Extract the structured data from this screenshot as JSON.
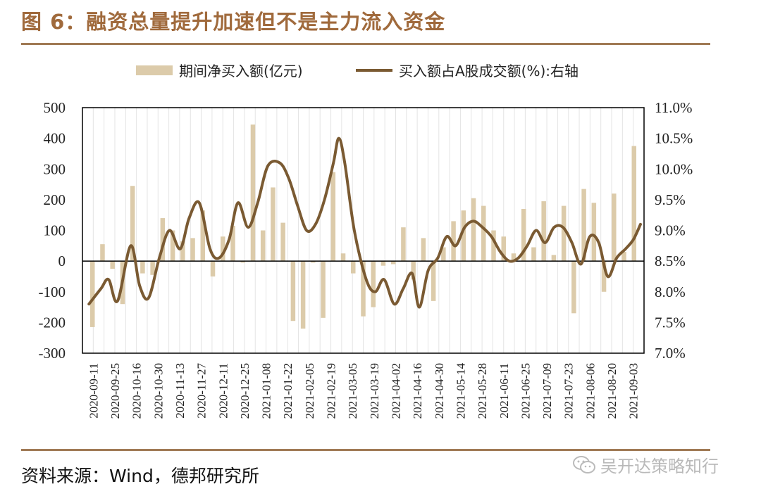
{
  "title": "图 6：融资总量提升加速但不是主力流入资金",
  "source": "资料来源：Wind，德邦研究所",
  "watermark": "吴开达策略知行",
  "colors": {
    "bar": "#dccbaa",
    "line": "#7a5a32",
    "accent": "#a06a3c"
  },
  "chart_data": {
    "type": "bar+line",
    "legend": [
      "期间净买入额(亿元)",
      "买入额占A股成交额(%):右轴"
    ],
    "legend_position": "top",
    "x_labels": [
      "2020-09-11",
      "2020-09-25",
      "2020-10-16",
      "2020-10-30",
      "2020-11-13",
      "2020-11-27",
      "2020-12-11",
      "2020-12-25",
      "2021-01-08",
      "2021-01-22",
      "2021-02-05",
      "2021-02-19",
      "2021-03-05",
      "2021-03-19",
      "2021-04-02",
      "2021-04-16",
      "2021-04-30",
      "2021-05-14",
      "2021-05-28",
      "2021-06-11",
      "2021-06-25",
      "2021-07-09",
      "2021-07-23",
      "2021-08-06",
      "2021-08-20",
      "2021-09-03"
    ],
    "left_axis": {
      "min": -300,
      "max": 500,
      "ticks": [
        "500",
        "400",
        "300",
        "200",
        "100",
        "0",
        "-100",
        "-200",
        "-300"
      ]
    },
    "right_axis": {
      "min": 7.0,
      "max": 11.0,
      "ticks": [
        "11.0%",
        "10.5%",
        "10.0%",
        "9.5%",
        "9.0%",
        "8.5%",
        "8.0%",
        "7.5%",
        "7.0%"
      ]
    },
    "series": [
      {
        "name": "期间净买入额(亿元)",
        "type": "bar",
        "values": [
          -215,
          55,
          -25,
          -140,
          245,
          -40,
          -45,
          140,
          100,
          65,
          75,
          165,
          -50,
          80,
          115,
          -5,
          445,
          100,
          240,
          125,
          -195,
          -220,
          -5,
          -185,
          290,
          25,
          -40,
          -180,
          -150,
          -15,
          -10,
          110,
          -60,
          75,
          -130,
          45,
          130,
          165,
          205,
          180,
          100,
          80,
          25,
          170,
          45,
          195,
          20,
          180,
          -170,
          235,
          190,
          -100,
          220,
          30,
          375
        ],
        "bar_positions": [
          0.5,
          1.5,
          2.5,
          3.5,
          4.5,
          5.5,
          6.5,
          7.5,
          8.5,
          9.5,
          10.5,
          11.5,
          12.5,
          13.5,
          14.5,
          15.5,
          16.5,
          17.5,
          18.5,
          19.5,
          20.5,
          21.5,
          22.5,
          23.5,
          24.5,
          25.5,
          26.5,
          27.5,
          28.5,
          29.5,
          30.5,
          31.5,
          32.5,
          33.5,
          34.5,
          35.5,
          36.5,
          37.5,
          38.5,
          39.5,
          40.5,
          41.5,
          42.5,
          43.5,
          44.5,
          45.5,
          46.5,
          47.5,
          48.5,
          49.5,
          50.5,
          51.5,
          52.5,
          53.5,
          54.5
        ]
      },
      {
        "name": "买入额占A股成交额(%):右轴",
        "type": "line",
        "axis": "right",
        "points": [
          [
            0.5,
            7.8
          ],
          [
            2.5,
            8.05
          ],
          [
            3.8,
            8.2
          ],
          [
            5.3,
            7.85
          ],
          [
            7.5,
            8.75
          ],
          [
            9.0,
            8.1
          ],
          [
            10.5,
            7.9
          ],
          [
            12.3,
            8.55
          ],
          [
            14.0,
            9.0
          ],
          [
            15.8,
            8.7
          ],
          [
            17.3,
            9.2
          ],
          [
            19.0,
            9.45
          ],
          [
            20.8,
            8.7
          ],
          [
            22.3,
            8.55
          ],
          [
            24.0,
            8.85
          ],
          [
            25.5,
            9.45
          ],
          [
            27.2,
            9.05
          ],
          [
            28.8,
            9.45
          ],
          [
            30.5,
            10.05
          ],
          [
            32.5,
            10.1
          ],
          [
            34.0,
            9.85
          ],
          [
            35.5,
            9.4
          ],
          [
            37.0,
            9.0
          ],
          [
            38.5,
            9.1
          ],
          [
            40.0,
            9.5
          ],
          [
            41.5,
            10.1
          ],
          [
            42.4,
            10.5
          ],
          [
            43.4,
            10.1
          ],
          [
            45.0,
            9.0
          ],
          [
            47.0,
            8.2
          ],
          [
            48.5,
            8.0
          ],
          [
            50.0,
            8.2
          ],
          [
            51.7,
            7.8
          ],
          [
            53.2,
            8.05
          ],
          [
            54.7,
            8.3
          ],
          [
            55.9,
            7.75
          ],
          [
            57.4,
            8.35
          ],
          [
            59.0,
            8.55
          ],
          [
            60.5,
            8.9
          ],
          [
            62.0,
            8.75
          ],
          [
            63.5,
            9.05
          ],
          [
            65.0,
            9.15
          ],
          [
            66.5,
            9.05
          ],
          [
            68.0,
            8.9
          ],
          [
            69.5,
            8.65
          ],
          [
            71.0,
            8.5
          ],
          [
            72.5,
            8.55
          ],
          [
            74.0,
            8.75
          ],
          [
            75.5,
            9.0
          ],
          [
            77.0,
            8.8
          ],
          [
            78.5,
            9.05
          ],
          [
            80.0,
            9.05
          ],
          [
            81.5,
            8.8
          ],
          [
            83.0,
            8.45
          ],
          [
            84.5,
            8.9
          ],
          [
            86.0,
            8.8
          ],
          [
            87.5,
            8.25
          ],
          [
            89.0,
            8.55
          ],
          [
            90.5,
            8.7
          ],
          [
            91.8,
            8.85
          ],
          [
            93.0,
            9.1
          ]
        ],
        "x_max": 93.0
      }
    ]
  }
}
